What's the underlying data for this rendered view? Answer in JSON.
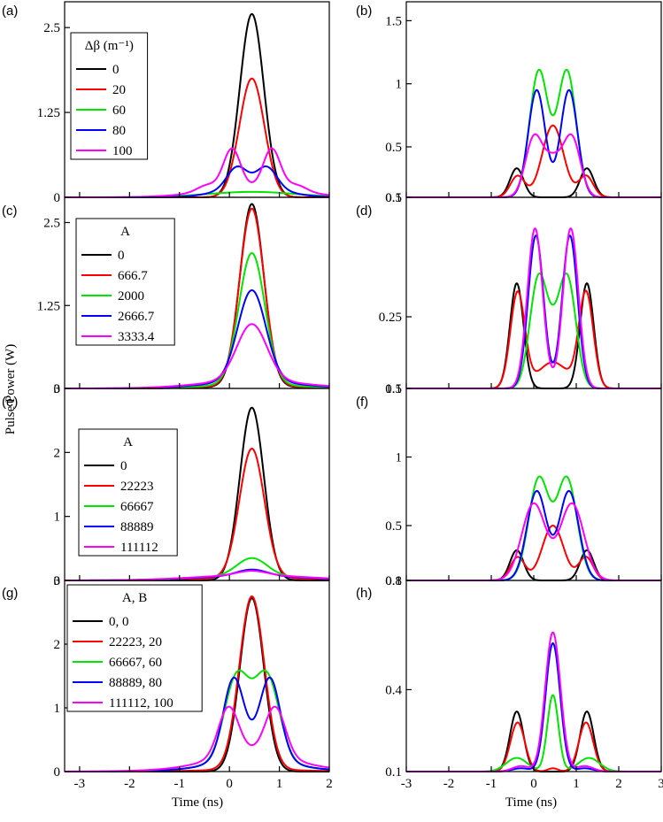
{
  "figure": {
    "ylabel": "Pulse Power (W)",
    "xlabel": "Time (ns)"
  },
  "chart_data": [
    {
      "panel": "(a)",
      "type": "line",
      "xlim": [
        -3.3,
        2
      ],
      "ylim": [
        0,
        2.88
      ],
      "yticks": [
        0,
        1.25,
        2.5
      ],
      "ytick_labels": [
        "0",
        "1.25",
        "2.5"
      ],
      "xticks": [
        -3,
        -2,
        -1,
        0,
        1,
        2
      ],
      "show_xtick_labels": false,
      "legend": {
        "title": "Δβ (m⁻¹)",
        "placement": "top-left"
      },
      "series": [
        {
          "name": "0",
          "color": "#000000",
          "components": [
            {
              "a": 2.7,
              "mu": 0.45,
              "sd": 0.24
            }
          ]
        },
        {
          "name": "20",
          "color": "#ff0000",
          "components": [
            {
              "a": 1.75,
              "mu": 0.45,
              "sd": 0.25
            }
          ]
        },
        {
          "name": "60",
          "color": "#00e600",
          "components": [
            {
              "a": 0.08,
              "mu": 0.45,
              "sd": 0.9
            }
          ]
        },
        {
          "name": "80",
          "color": "#0000ff",
          "components": [
            {
              "a": 0.17,
              "mu": 0.45,
              "sd": 0.6
            },
            {
              "a": 0.3,
              "mu": 0.15,
              "sd": 0.2
            },
            {
              "a": 0.3,
              "mu": 0.75,
              "sd": 0.2
            }
          ]
        },
        {
          "name": "100",
          "color": "#ff00ff",
          "components": [
            {
              "a": 0.15,
              "mu": 0.45,
              "sd": 0.9
            },
            {
              "a": 0.58,
              "mu": 0.05,
              "sd": 0.17
            },
            {
              "a": 0.58,
              "mu": 0.85,
              "sd": 0.17
            },
            {
              "a": 0.09,
              "mu": -0.45,
              "sd": 0.2
            },
            {
              "a": 0.09,
              "mu": 1.35,
              "sd": 0.2
            }
          ]
        }
      ]
    },
    {
      "panel": "(b)",
      "type": "line",
      "xlim": [
        -3,
        3
      ],
      "ylim": [
        0.1,
        1.65
      ],
      "yticks": [
        0.1,
        0.5,
        1,
        1.5
      ],
      "ytick_labels": [
        "0.1",
        "0.5",
        "1",
        "1.5"
      ],
      "xticks": [
        -3,
        -2,
        -1,
        0,
        1,
        2,
        3
      ],
      "show_xtick_labels": false,
      "series": [
        {
          "name": "0",
          "color": "#000000",
          "components": [
            {
              "a": 0.23,
              "mu": -0.4,
              "sd": 0.16
            },
            {
              "a": 0.23,
              "mu": 1.25,
              "sd": 0.16
            }
          ]
        },
        {
          "name": "20",
          "color": "#ff0000",
          "components": [
            {
              "a": 0.17,
              "mu": -0.38,
              "sd": 0.17
            },
            {
              "a": 0.17,
              "mu": 1.23,
              "sd": 0.17
            },
            {
              "a": 0.57,
              "mu": 0.45,
              "sd": 0.25
            }
          ]
        },
        {
          "name": "60",
          "color": "#00e600",
          "components": [
            {
              "a": 1.0,
              "mu": 0.12,
              "sd": 0.22
            },
            {
              "a": 1.0,
              "mu": 0.78,
              "sd": 0.22
            }
          ]
        },
        {
          "name": "80",
          "color": "#0000ff",
          "components": [
            {
              "a": 0.85,
              "mu": 0.07,
              "sd": 0.2
            },
            {
              "a": 0.85,
              "mu": 0.83,
              "sd": 0.2
            }
          ]
        },
        {
          "name": "100",
          "color": "#ff00ff",
          "components": [
            {
              "a": 0.46,
              "mu": 0.0,
              "sd": 0.2
            },
            {
              "a": 0.46,
              "mu": 0.9,
              "sd": 0.2
            },
            {
              "a": 0.28,
              "mu": 0.45,
              "sd": 0.22
            }
          ]
        }
      ]
    },
    {
      "panel": "(c)",
      "type": "line",
      "xlim": [
        -3.3,
        2
      ],
      "ylim": [
        0,
        2.88
      ],
      "yticks": [
        0,
        1.25,
        2.5
      ],
      "ytick_labels": [
        "0",
        "1.25",
        "2.5"
      ],
      "xticks": [
        -3,
        -2,
        -1,
        0,
        1,
        2
      ],
      "show_xtick_labels": false,
      "legend": {
        "title": "A",
        "placement": "top-left"
      },
      "series": [
        {
          "name": "0",
          "color": "#000000",
          "components": [
            {
              "a": 2.75,
              "mu": 0.45,
              "sd": 0.24
            },
            {
              "a": 0.03,
              "mu": 0.45,
              "sd": 0.9
            }
          ]
        },
        {
          "name": "666.7",
          "color": "#ff0000",
          "components": [
            {
              "a": 2.67,
              "mu": 0.45,
              "sd": 0.245
            },
            {
              "a": 0.04,
              "mu": 0.45,
              "sd": 0.9
            }
          ]
        },
        {
          "name": "2000",
          "color": "#00e600",
          "components": [
            {
              "a": 1.98,
              "mu": 0.45,
              "sd": 0.26
            },
            {
              "a": 0.06,
              "mu": 0.45,
              "sd": 0.9
            }
          ]
        },
        {
          "name": "2666.7",
          "color": "#0000ff",
          "components": [
            {
              "a": 1.38,
              "mu": 0.45,
              "sd": 0.28
            },
            {
              "a": 0.1,
              "mu": 0.45,
              "sd": 0.95
            }
          ]
        },
        {
          "name": "3333.4",
          "color": "#ff00ff",
          "components": [
            {
              "a": 0.85,
              "mu": 0.45,
              "sd": 0.3
            },
            {
              "a": 0.12,
              "mu": 0.45,
              "sd": 1.0
            }
          ]
        }
      ]
    },
    {
      "panel": "(d)",
      "type": "line",
      "xlim": [
        -3,
        3
      ],
      "ylim": [
        0.1,
        0.5
      ],
      "yticks": [
        0.1,
        0.25,
        0.5
      ],
      "ytick_labels": [
        "0.1",
        "0.25",
        "0.5"
      ],
      "xticks": [
        -3,
        -2,
        -1,
        0,
        1,
        2,
        3
      ],
      "show_xtick_labels": false,
      "series": [
        {
          "name": "0",
          "color": "#000000",
          "components": [
            {
              "a": 0.22,
              "mu": -0.4,
              "sd": 0.16
            },
            {
              "a": 0.22,
              "mu": 1.25,
              "sd": 0.16
            }
          ]
        },
        {
          "name": "666.7",
          "color": "#ff0000",
          "components": [
            {
              "a": 0.2,
              "mu": -0.38,
              "sd": 0.17
            },
            {
              "a": 0.2,
              "mu": 1.23,
              "sd": 0.17
            },
            {
              "a": 0.055,
              "mu": 0.45,
              "sd": 0.35
            }
          ]
        },
        {
          "name": "2000",
          "color": "#00e600",
          "components": [
            {
              "a": 0.22,
              "mu": 0.1,
              "sd": 0.2
            },
            {
              "a": 0.22,
              "mu": 0.8,
              "sd": 0.2
            },
            {
              "a": 0.08,
              "mu": 0.45,
              "sd": 0.2
            }
          ]
        },
        {
          "name": "2666.7",
          "color": "#0000ff",
          "components": [
            {
              "a": 0.32,
              "mu": 0.05,
              "sd": 0.18
            },
            {
              "a": 0.32,
              "mu": 0.85,
              "sd": 0.18
            }
          ]
        },
        {
          "name": "3333.4",
          "color": "#ff00ff",
          "components": [
            {
              "a": 0.335,
              "mu": 0.03,
              "sd": 0.18
            },
            {
              "a": 0.335,
              "mu": 0.87,
              "sd": 0.18
            }
          ]
        }
      ]
    },
    {
      "panel": "(e)",
      "type": "line",
      "xlim": [
        -3.3,
        2
      ],
      "ylim": [
        0,
        3
      ],
      "yticks": [
        0,
        1,
        2,
        3
      ],
      "ytick_labels": [
        "0",
        "1",
        "2",
        "3"
      ],
      "xticks": [
        -3,
        -2,
        -1,
        0,
        1,
        2
      ],
      "show_xtick_labels": false,
      "legend": {
        "title": "A",
        "placement": "top-left"
      },
      "series": [
        {
          "name": "0",
          "color": "#000000",
          "components": [
            {
              "a": 2.7,
              "mu": 0.45,
              "sd": 0.24
            }
          ]
        },
        {
          "name": "22223",
          "color": "#ff0000",
          "components": [
            {
              "a": 2.02,
              "mu": 0.45,
              "sd": 0.25
            },
            {
              "a": 0.04,
              "mu": 0.45,
              "sd": 1.0
            }
          ]
        },
        {
          "name": "66667",
          "color": "#00e600",
          "components": [
            {
              "a": 0.28,
              "mu": 0.45,
              "sd": 0.3
            },
            {
              "a": 0.07,
              "mu": 0.45,
              "sd": 1.1
            }
          ]
        },
        {
          "name": "88889",
          "color": "#0000ff",
          "components": [
            {
              "a": 0.1,
              "mu": 0.45,
              "sd": 0.3
            },
            {
              "a": 0.07,
              "mu": 0.45,
              "sd": 1.1
            }
          ]
        },
        {
          "name": "111112",
          "color": "#ff00ff",
          "components": [
            {
              "a": 0.07,
              "mu": 0.45,
              "sd": 0.3
            },
            {
              "a": 0.08,
              "mu": 0.45,
              "sd": 1.15
            }
          ]
        }
      ]
    },
    {
      "panel": "(f)",
      "type": "line",
      "xlim": [
        -3,
        3
      ],
      "ylim": [
        0.1,
        1.5
      ],
      "yticks": [
        0.1,
        0.5,
        1,
        1.5
      ],
      "ytick_labels": [
        "0.1",
        "0.5",
        "1",
        "1.5"
      ],
      "xticks": [
        -3,
        -2,
        -1,
        0,
        1,
        2,
        3
      ],
      "show_xtick_labels": false,
      "series": [
        {
          "name": "0",
          "color": "#000000",
          "components": [
            {
              "a": 0.22,
              "mu": -0.4,
              "sd": 0.16
            },
            {
              "a": 0.22,
              "mu": 1.25,
              "sd": 0.16
            }
          ]
        },
        {
          "name": "22223",
          "color": "#ff0000",
          "components": [
            {
              "a": 0.17,
              "mu": -0.38,
              "sd": 0.17
            },
            {
              "a": 0.17,
              "mu": 1.23,
              "sd": 0.17
            },
            {
              "a": 0.4,
              "mu": 0.45,
              "sd": 0.25
            }
          ]
        },
        {
          "name": "66667",
          "color": "#00e600",
          "components": [
            {
              "a": 0.74,
              "mu": 0.12,
              "sd": 0.24
            },
            {
              "a": 0.74,
              "mu": 0.78,
              "sd": 0.24
            }
          ]
        },
        {
          "name": "88889",
          "color": "#0000ff",
          "components": [
            {
              "a": 0.65,
              "mu": 0.07,
              "sd": 0.23
            },
            {
              "a": 0.65,
              "mu": 0.83,
              "sd": 0.23
            }
          ]
        },
        {
          "name": "111112",
          "color": "#ff00ff",
          "components": [
            {
              "a": 0.56,
              "mu": 0.0,
              "sd": 0.28
            },
            {
              "a": 0.56,
              "mu": 0.9,
              "sd": 0.28
            }
          ]
        }
      ]
    },
    {
      "panel": "(g)",
      "type": "line",
      "xlim": [
        -3.3,
        2
      ],
      "ylim": [
        0,
        3
      ],
      "yticks": [
        0,
        1,
        2,
        3
      ],
      "ytick_labels": [
        "0",
        "1",
        "2",
        "3"
      ],
      "xticks": [
        -3,
        -2,
        -1,
        0,
        1,
        2
      ],
      "xtick_labels": [
        "-3",
        "-2",
        "-1",
        "0",
        "1",
        "2"
      ],
      "show_xtick_labels": true,
      "legend": {
        "title": "A, B",
        "placement": "top-left"
      },
      "series": [
        {
          "name": "0, 0",
          "color": "#000000",
          "components": [
            {
              "a": 2.72,
              "mu": 0.45,
              "sd": 0.24
            }
          ]
        },
        {
          "name": "22223, 20",
          "color": "#ff0000",
          "components": [
            {
              "a": 2.72,
              "mu": 0.45,
              "sd": 0.25
            },
            {
              "a": 0.03,
              "mu": 0.45,
              "sd": 1.0
            }
          ]
        },
        {
          "name": "66667, 60",
          "color": "#00e600",
          "components": [
            {
              "a": 1.35,
              "mu": 0.15,
              "sd": 0.25
            },
            {
              "a": 1.35,
              "mu": 0.75,
              "sd": 0.25
            },
            {
              "a": 0.15,
              "mu": 0.45,
              "sd": 0.9
            }
          ]
        },
        {
          "name": "88889, 80",
          "color": "#0000ff",
          "components": [
            {
              "a": 1.15,
              "mu": 0.08,
              "sd": 0.2
            },
            {
              "a": 1.15,
              "mu": 0.82,
              "sd": 0.2
            },
            {
              "a": 0.3,
              "mu": 0.45,
              "sd": 0.5
            },
            {
              "a": 0.1,
              "mu": 0.45,
              "sd": 1.0
            }
          ]
        },
        {
          "name": "111112, 100",
          "color": "#ff00ff",
          "components": [
            {
              "a": 0.75,
              "mu": -0.02,
              "sd": 0.2
            },
            {
              "a": 0.75,
              "mu": 0.92,
              "sd": 0.2
            },
            {
              "a": 0.22,
              "mu": 0.45,
              "sd": 0.7
            },
            {
              "a": 0.1,
              "mu": 0.45,
              "sd": 1.2
            }
          ]
        }
      ]
    },
    {
      "panel": "(h)",
      "type": "line",
      "xlim": [
        -3,
        3
      ],
      "ylim": [
        0.1,
        0.8
      ],
      "yticks": [
        0.1,
        0.4,
        0.8
      ],
      "ytick_labels": [
        "0.1",
        "0.4",
        "0.8"
      ],
      "xticks": [
        -3,
        -2,
        -1,
        0,
        1,
        2,
        3
      ],
      "xtick_labels": [
        "-3",
        "-2",
        "-1",
        "0",
        "1",
        "2",
        "3"
      ],
      "show_xtick_labels": true,
      "series": [
        {
          "name": "0, 0",
          "color": "#000000",
          "components": [
            {
              "a": 0.22,
              "mu": -0.4,
              "sd": 0.16
            },
            {
              "a": 0.22,
              "mu": 1.25,
              "sd": 0.16
            }
          ]
        },
        {
          "name": "22223, 20",
          "color": "#ff0000",
          "components": [
            {
              "a": 0.18,
              "mu": -0.38,
              "sd": 0.17
            },
            {
              "a": 0.18,
              "mu": 1.23,
              "sd": 0.17
            },
            {
              "a": 0.012,
              "mu": 0.45,
              "sd": 0.12
            }
          ]
        },
        {
          "name": "66667, 60",
          "color": "#00e600",
          "components": [
            {
              "a": 0.05,
              "mu": -0.4,
              "sd": 0.25
            },
            {
              "a": 0.05,
              "mu": 1.3,
              "sd": 0.25
            },
            {
              "a": 0.28,
              "mu": 0.45,
              "sd": 0.13
            }
          ]
        },
        {
          "name": "88889, 80",
          "color": "#0000ff",
          "components": [
            {
              "a": 0.012,
              "mu": -0.3,
              "sd": 0.2
            },
            {
              "a": 0.012,
              "mu": 1.2,
              "sd": 0.2
            },
            {
              "a": 0.47,
              "mu": 0.45,
              "sd": 0.17
            }
          ]
        },
        {
          "name": "111112, 100",
          "color": "#ff00ff",
          "components": [
            {
              "a": 0.02,
              "mu": -0.3,
              "sd": 0.2
            },
            {
              "a": 0.02,
              "mu": 1.2,
              "sd": 0.2
            },
            {
              "a": 0.51,
              "mu": 0.45,
              "sd": 0.18
            }
          ]
        }
      ]
    }
  ]
}
